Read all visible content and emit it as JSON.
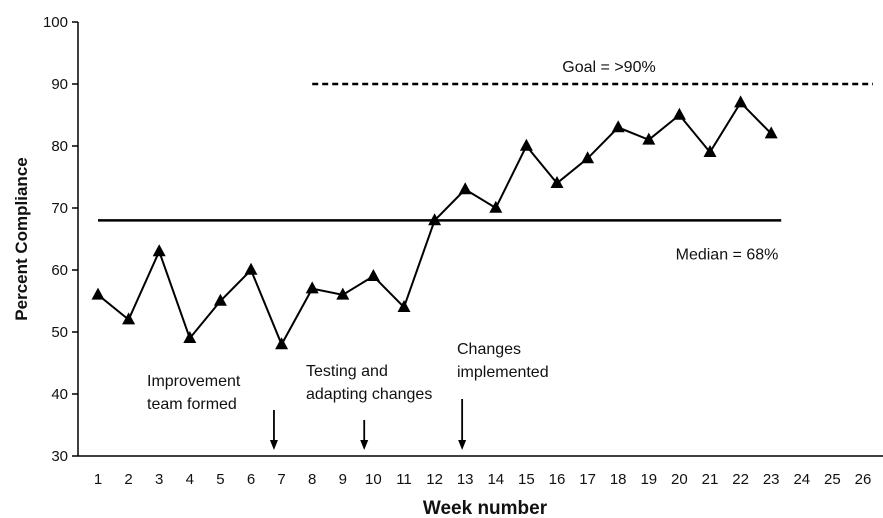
{
  "chart_data": {
    "type": "line",
    "xlabel": "Week number",
    "ylabel": "Percent Compliance",
    "x_ticks": [
      "1",
      "2",
      "3",
      "4",
      "5",
      "6",
      "7",
      "8",
      "9",
      "10",
      "11",
      "12",
      "13",
      "14",
      "15",
      "16",
      "17",
      "18",
      "19",
      "20",
      "21",
      "22",
      "23",
      "24",
      "25",
      "26"
    ],
    "y_ticks": [
      "30",
      "40",
      "50",
      "60",
      "70",
      "80",
      "90",
      "100"
    ],
    "xlim": [
      1,
      26
    ],
    "ylim": [
      30,
      100
    ],
    "grid": false,
    "series": [
      {
        "x": [
          1,
          2,
          3,
          4,
          5,
          6,
          7,
          8,
          9,
          10,
          11,
          12,
          13,
          14,
          15,
          16,
          17,
          18,
          19,
          20,
          21,
          22,
          23
        ],
        "values": [
          56,
          52,
          63,
          49,
          55,
          60,
          48,
          57,
          56,
          59,
          54,
          68,
          73,
          70,
          80,
          74,
          78,
          83,
          81,
          85,
          79,
          87,
          82
        ],
        "marker": "triangle",
        "color": "#000000"
      }
    ],
    "reference_lines": [
      {
        "label": "Goal  = >90%",
        "y": 90,
        "x_start": 8,
        "x_end": 26,
        "style": "dashed"
      },
      {
        "label": "Median = 68%",
        "y": 68,
        "x_start": 1,
        "x_end": 23,
        "style": "solid"
      }
    ],
    "annotations": [
      {
        "lines": [
          "Improvement",
          "team formed"
        ],
        "arrow_x": 6.75
      },
      {
        "lines": [
          "Testing and",
          "adapting changes"
        ],
        "arrow_x": 9.7
      },
      {
        "lines": [
          "Changes",
          "implemented"
        ],
        "arrow_x": 12.9
      }
    ]
  }
}
